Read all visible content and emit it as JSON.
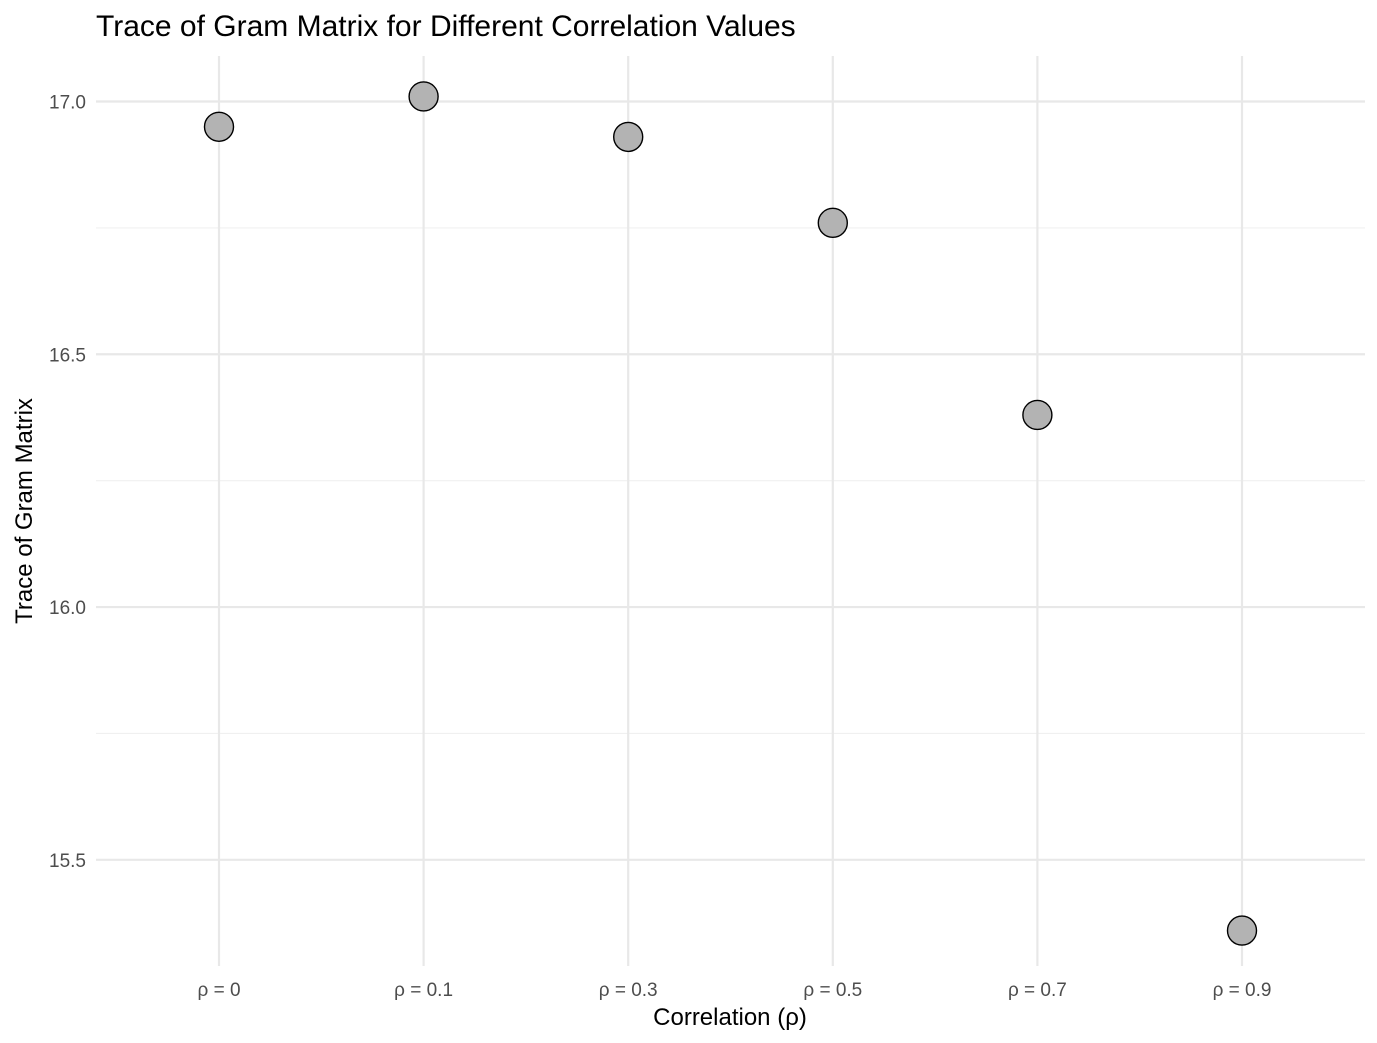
{
  "chart_data": {
    "type": "scatter",
    "title": "Trace of Gram Matrix for Different Correlation Values",
    "xlabel": "Correlation (ρ)",
    "ylabel": "Trace of Gram Matrix",
    "categories": [
      "ρ = 0",
      "ρ = 0.1",
      "ρ = 0.3",
      "ρ = 0.5",
      "ρ = 0.7",
      "ρ = 0.9"
    ],
    "values": [
      16.95,
      17.01,
      16.93,
      16.76,
      16.38,
      15.36
    ],
    "yticks": [
      15.5,
      16.0,
      16.5,
      17.0
    ],
    "ytick_labels": [
      "15.5",
      "16.0",
      "16.5",
      "17.0"
    ],
    "ylim": [
      15.29,
      17.09
    ],
    "grid": true,
    "legend": "none",
    "colors": {
      "point_fill": "#b3b3b3",
      "point_stroke": "#000000",
      "grid": "#e8e8e8"
    }
  }
}
